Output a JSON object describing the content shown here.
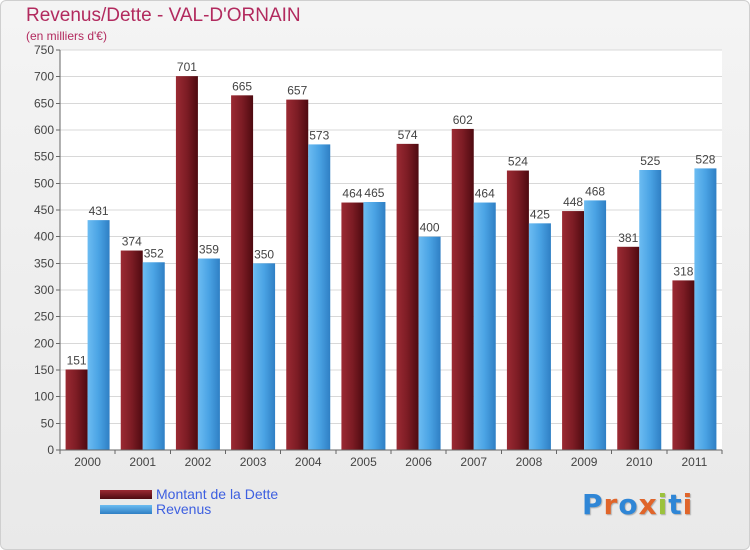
{
  "header": {
    "title": "Revenus/Dette - VAL-D'ORNAIN",
    "subtitle": "(en milliers d'€)"
  },
  "chart_data": {
    "type": "bar",
    "title": "Revenus/Dette - VAL-D'ORNAIN",
    "subtitle": "(en milliers d'€)",
    "xlabel": "",
    "ylabel": "",
    "categories": [
      "2000",
      "2001",
      "2002",
      "2003",
      "2004",
      "2005",
      "2006",
      "2007",
      "2008",
      "2009",
      "2010",
      "2011"
    ],
    "series": [
      {
        "name": "Montant de la Dette",
        "color": "#7a1a22",
        "values": [
          151,
          374,
          701,
          665,
          657,
          464,
          574,
          602,
          524,
          448,
          381,
          318
        ]
      },
      {
        "name": "Revenus",
        "color": "#4aa3e4",
        "values": [
          431,
          352,
          359,
          350,
          573,
          465,
          400,
          464,
          425,
          468,
          525,
          528
        ]
      }
    ],
    "ylim": [
      0,
      750
    ],
    "yticks": [
      0,
      50,
      100,
      150,
      200,
      250,
      300,
      350,
      400,
      450,
      500,
      550,
      600,
      650,
      700,
      750
    ],
    "grid": true,
    "legend_position": "bottom-left"
  },
  "logo": {
    "letters": [
      {
        "char": "P",
        "color": "#2f86d6"
      },
      {
        "char": "r",
        "color": "#e0652a"
      },
      {
        "char": "o",
        "color": "#2f86d6"
      },
      {
        "char": "x",
        "color": "#e0652a"
      },
      {
        "char": "i",
        "color": "#9bc23c"
      },
      {
        "char": "t",
        "color": "#2f86d6"
      },
      {
        "char": "i",
        "color": "#e0652a"
      }
    ]
  }
}
